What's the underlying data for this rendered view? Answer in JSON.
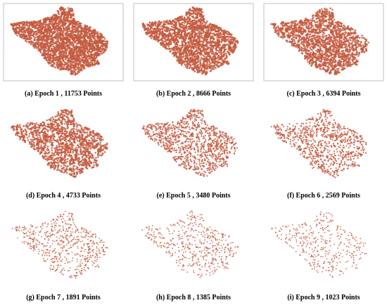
{
  "panels": [
    {
      "caption": "(a) Epoch 1 , 11753 Points"
    },
    {
      "caption": "(b) Epoch 2 , 8666 Points"
    },
    {
      "caption": "(c) Epoch 3 , 6394 Points"
    },
    {
      "caption": "(d) Epoch 4 , 4733 Points"
    },
    {
      "caption": "(e) Epoch 5 , 3480 Points"
    },
    {
      "caption": "(f) Epoch 6 , 2569 Points"
    },
    {
      "caption": "(g) Epoch 7 , 1891 Points"
    },
    {
      "caption": "(h) Epoch 8 , 1385 Points"
    },
    {
      "caption": "(i) Epoch 9 , 1023 Points"
    }
  ]
}
